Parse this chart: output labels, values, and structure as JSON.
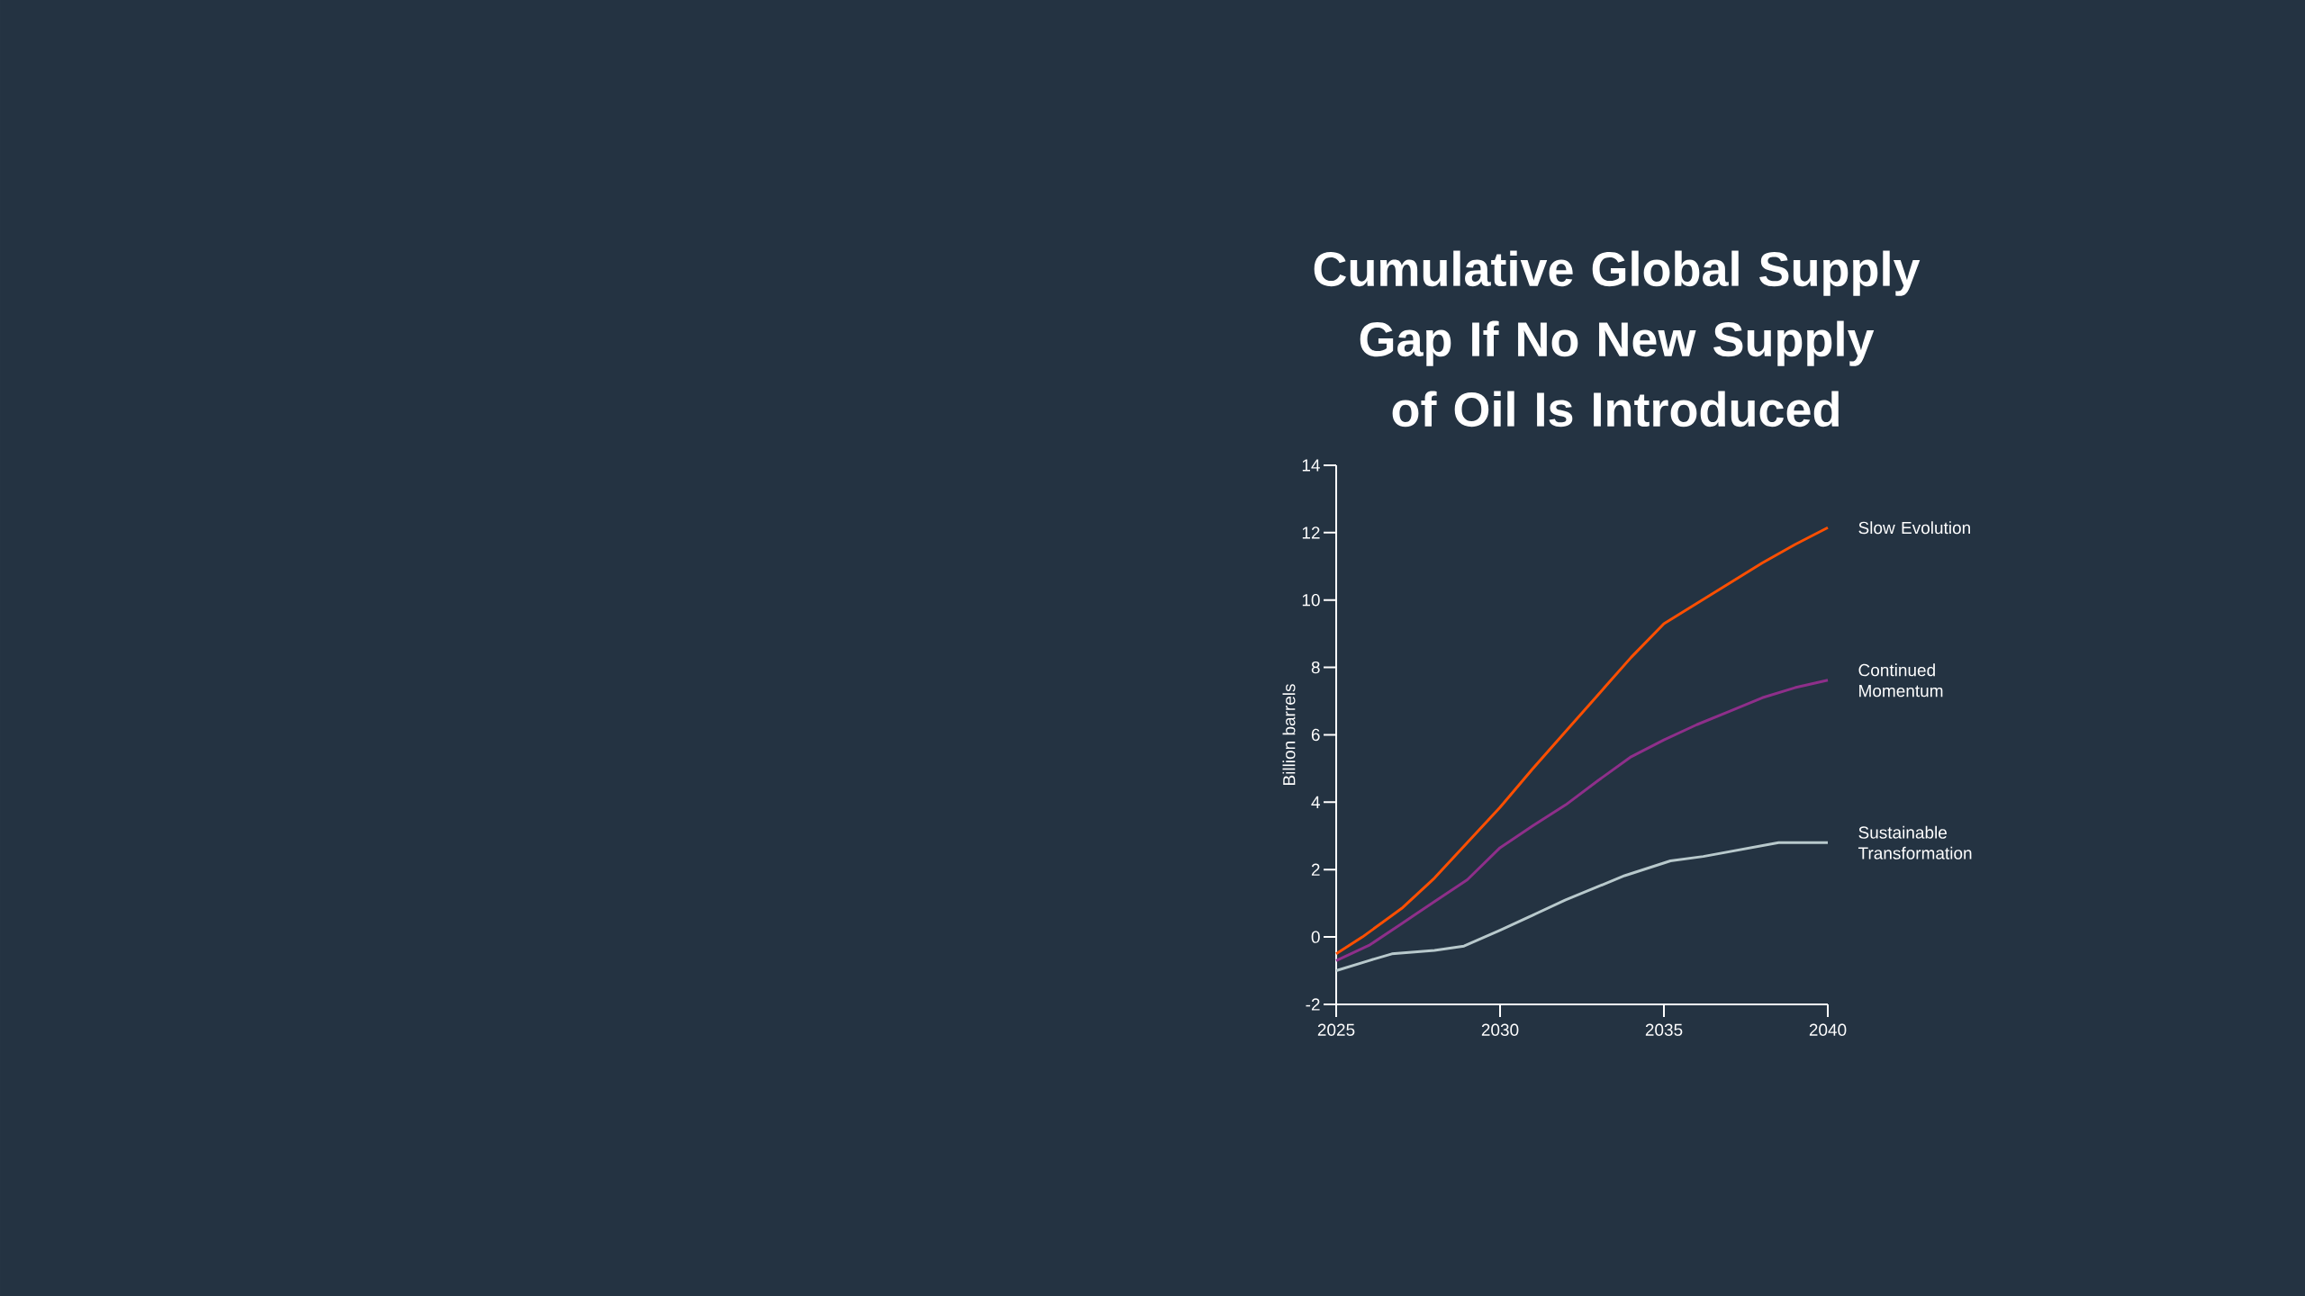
{
  "chart_data": {
    "type": "line",
    "title": "Cumulative Global Supply Gap If No New Supply of Oil Is Introduced",
    "ylabel": "Billion barrels",
    "xlim": [
      2025,
      2040
    ],
    "xticks": [
      2025,
      2030,
      2035,
      2040
    ],
    "ylim": [
      -2,
      14
    ],
    "yticks": [
      -2,
      0,
      2,
      4,
      6,
      8,
      10,
      12,
      14
    ],
    "grid": false,
    "series": [
      {
        "name": "Slow Evolution",
        "color": "#ff4f00",
        "x": [
          2025,
          2025.8,
          2027,
          2028,
          2029,
          2030,
          2031,
          2032,
          2033,
          2034,
          2035,
          2036,
          2037,
          2038,
          2039,
          2040
        ],
        "values": [
          -0.5,
          0,
          0.85,
          1.75,
          2.8,
          3.85,
          5.0,
          6.1,
          7.2,
          8.3,
          9.3,
          9.9,
          10.5,
          11.1,
          11.65,
          12.15
        ]
      },
      {
        "name": "Continued Momentum",
        "color": "#8e2f8a",
        "x": [
          2025,
          2026,
          2027,
          2028,
          2029,
          2030,
          2031,
          2032,
          2033,
          2034,
          2035,
          2036,
          2037,
          2038,
          2039,
          2040
        ],
        "values": [
          -0.7,
          -0.25,
          0.4,
          1.05,
          1.7,
          2.65,
          3.3,
          3.92,
          4.65,
          5.35,
          5.85,
          6.3,
          6.7,
          7.1,
          7.4,
          7.62
        ]
      },
      {
        "name": "Sustainable Transformation",
        "color": "#b8c9cc",
        "x": [
          2025,
          2026,
          2026.7,
          2028,
          2028.9,
          2030,
          2031,
          2032,
          2033,
          2033.8,
          2035.2,
          2036.2,
          2038.5,
          2040
        ],
        "values": [
          -1.0,
          -0.7,
          -0.5,
          -0.4,
          -0.27,
          0.2,
          0.65,
          1.1,
          1.5,
          1.82,
          2.26,
          2.39,
          2.8,
          2.8
        ]
      }
    ]
  }
}
